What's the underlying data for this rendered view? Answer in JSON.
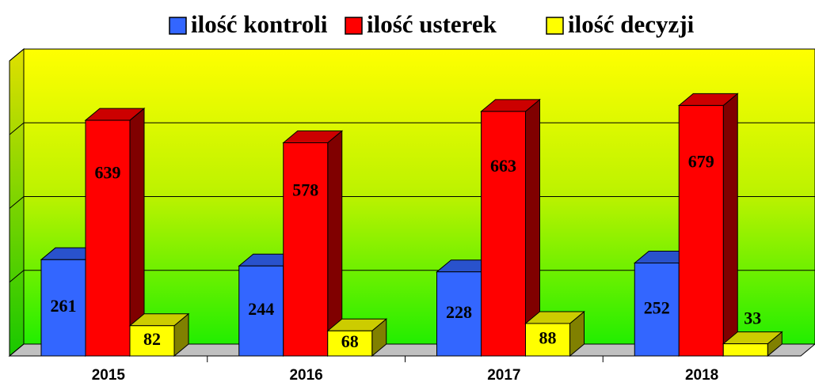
{
  "chart_data": {
    "type": "bar3d",
    "categories": [
      "2015",
      "2016",
      "2017",
      "2018"
    ],
    "series": [
      {
        "name": "ilość  kontroli",
        "color": "#3366ff",
        "values": [
          261,
          244,
          228,
          252
        ]
      },
      {
        "name": "ilość usterek",
        "color": "#ff0000",
        "values": [
          639,
          578,
          663,
          679
        ]
      },
      {
        "name": "ilość decyzji",
        "color": "#ffff00",
        "values": [
          82,
          68,
          88,
          33
        ]
      }
    ],
    "ylim": [
      0,
      800
    ],
    "yticks": [
      0,
      200,
      400,
      600,
      800
    ],
    "grid": true,
    "legend": "top"
  }
}
